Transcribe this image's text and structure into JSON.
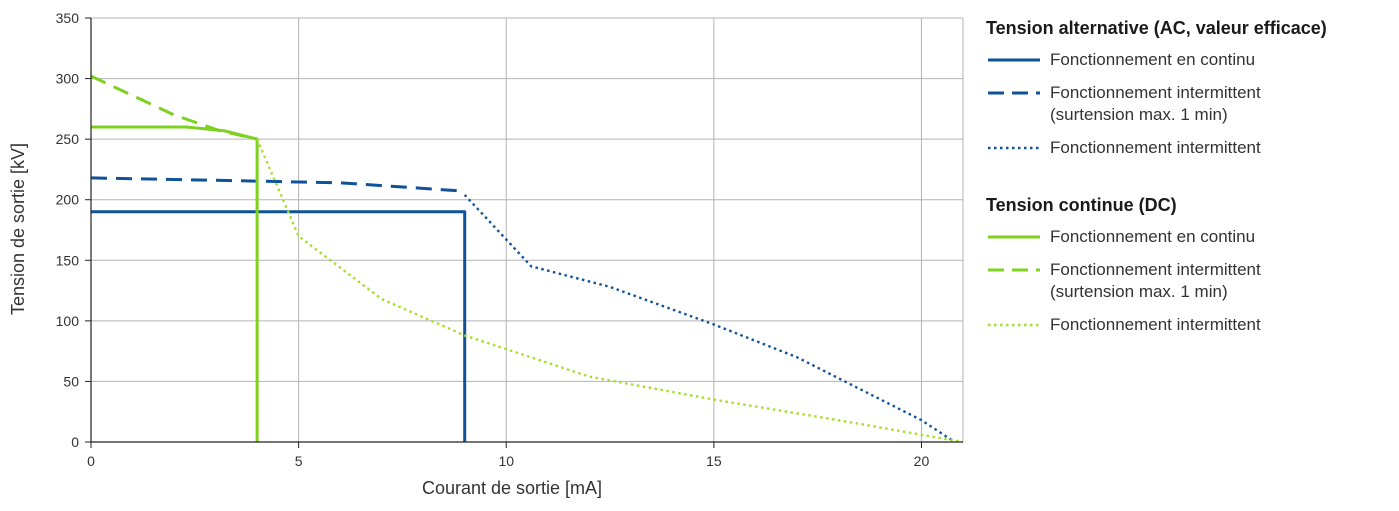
{
  "chart_data": {
    "type": "line",
    "xlabel": "Courant de sortie [mA]",
    "ylabel": "Tension de sortie [kV]",
    "xlim": [
      0,
      21
    ],
    "ylim": [
      0,
      350
    ],
    "x_ticks": [
      0,
      5,
      10,
      15,
      20
    ],
    "y_ticks": [
      0,
      50,
      100,
      150,
      200,
      250,
      300,
      350
    ],
    "grid": true,
    "legend_position": "right",
    "legend_groups": [
      {
        "title": "Tension alternative (AC, valeur efficace)",
        "entries": [
          {
            "label": "Fonctionnement en continu",
            "series_ref": "ac_continu"
          },
          {
            "label": "Fonctionnement intermittent",
            "label2": "(surtension max. 1 min)",
            "series_ref": "ac_surtension"
          },
          {
            "label": "Fonctionnement intermittent",
            "series_ref": "ac_intermittent"
          }
        ]
      },
      {
        "title": "Tension continue (DC)",
        "entries": [
          {
            "label": "Fonctionnement en continu",
            "series_ref": "dc_continu"
          },
          {
            "label": "Fonctionnement intermittent",
            "label2": "(surtension max. 1 min)",
            "series_ref": "dc_surtension"
          },
          {
            "label": "Fonctionnement intermittent",
            "series_ref": "dc_intermittent"
          }
        ]
      }
    ],
    "series": [
      {
        "id": "ac_continu",
        "color": "#0f5298",
        "style": "solid",
        "points": [
          [
            0,
            190
          ],
          [
            9,
            190
          ],
          [
            9,
            0
          ]
        ]
      },
      {
        "id": "ac_surtension",
        "color": "#0f5298",
        "style": "dashed",
        "points": [
          [
            0,
            218
          ],
          [
            3,
            216
          ],
          [
            6,
            214
          ],
          [
            9,
            207
          ]
        ]
      },
      {
        "id": "ac_intermittent",
        "color": "#0f5298",
        "style": "dotted",
        "points": [
          [
            9,
            204
          ],
          [
            10.6,
            145
          ],
          [
            12.5,
            128
          ],
          [
            15,
            97
          ],
          [
            17,
            70
          ],
          [
            20,
            18
          ],
          [
            20.8,
            0
          ]
        ]
      },
      {
        "id": "dc_continu",
        "color": "#7fd11f",
        "style": "solid",
        "points": [
          [
            0,
            260
          ],
          [
            2.3,
            260
          ],
          [
            3.2,
            257
          ],
          [
            4,
            250
          ],
          [
            4,
            0
          ]
        ]
      },
      {
        "id": "dc_surtension",
        "color": "#7fd11f",
        "style": "dashed",
        "points": [
          [
            0,
            302
          ],
          [
            2,
            270
          ],
          [
            3.1,
            257
          ],
          [
            4,
            250
          ]
        ]
      },
      {
        "id": "dc_intermittent",
        "color": "#a6de2e",
        "style": "dotted",
        "points": [
          [
            4,
            250
          ],
          [
            5,
            170
          ],
          [
            7,
            118
          ],
          [
            9,
            88
          ],
          [
            12,
            54
          ],
          [
            15,
            35
          ],
          [
            18,
            18
          ],
          [
            21,
            0
          ]
        ]
      }
    ]
  }
}
